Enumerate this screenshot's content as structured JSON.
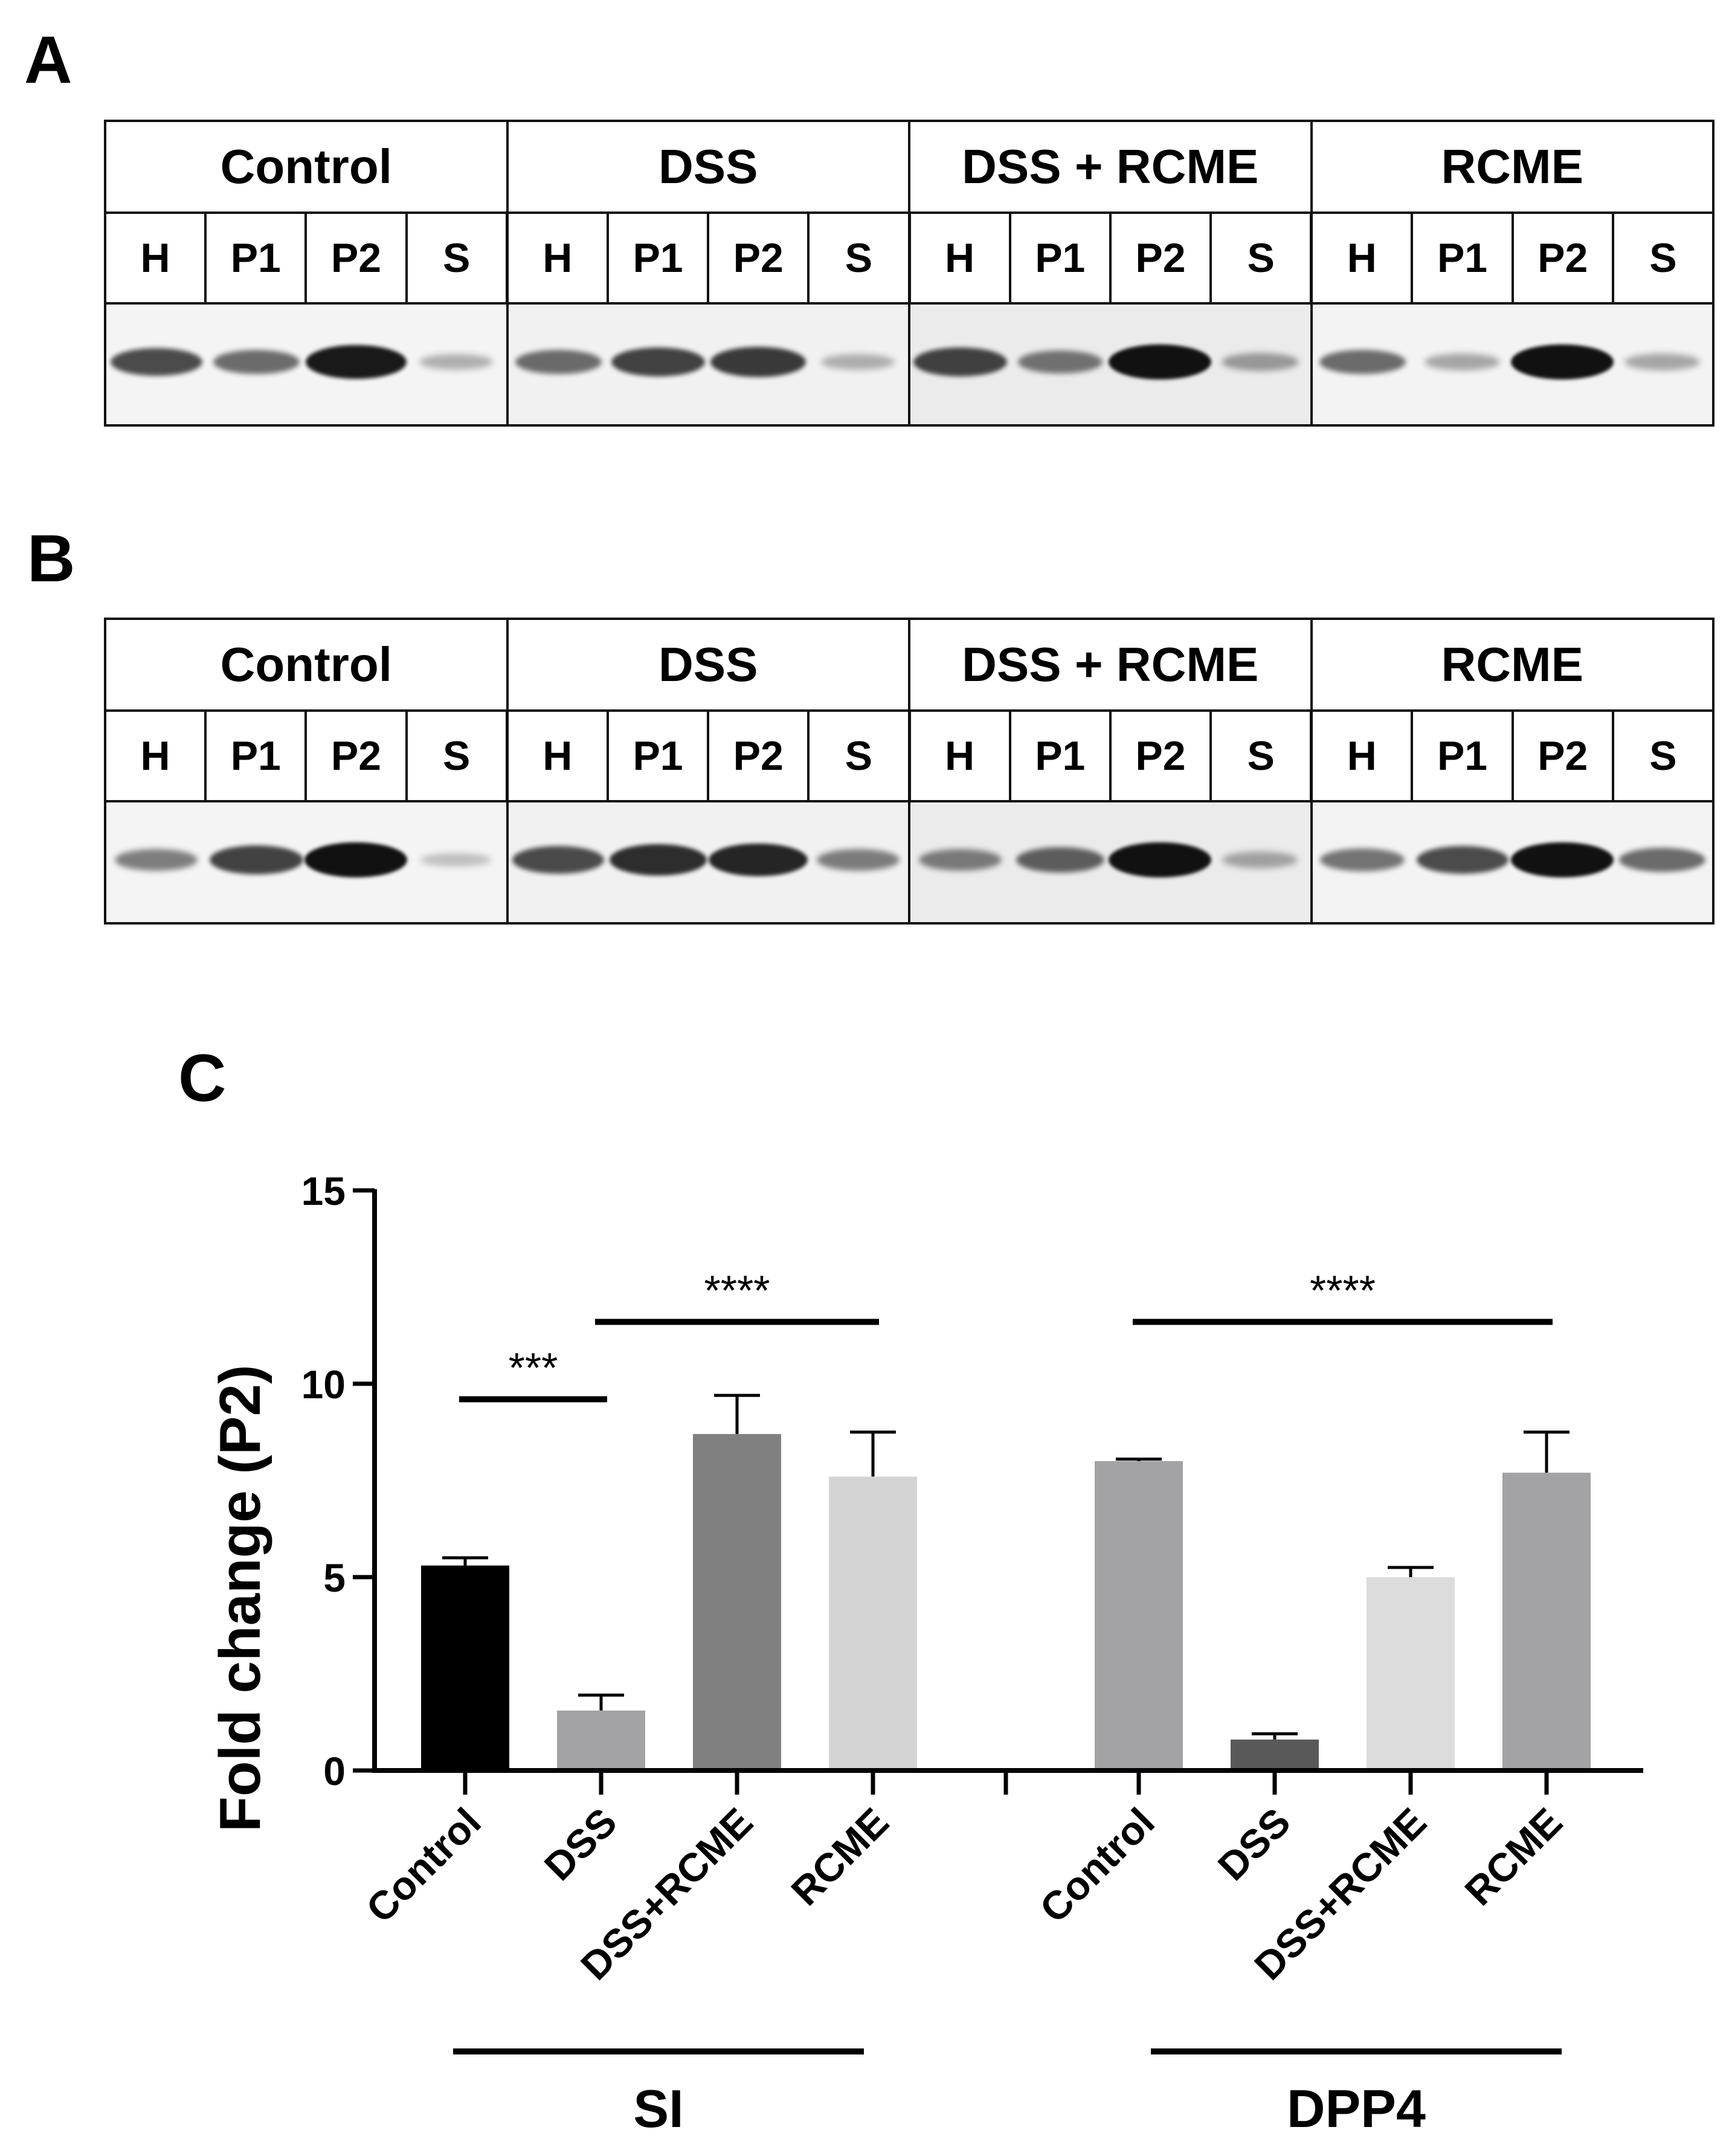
{
  "panels": {
    "a": "A",
    "b": "B",
    "c": "C"
  },
  "blot_a": {
    "groups": [
      "Control",
      "DSS",
      "DSS + RCME",
      "RCME"
    ],
    "lanes": [
      "H",
      "P1",
      "P2",
      "S"
    ],
    "band_intensity": [
      [
        0.7,
        0.55,
        0.95,
        0.2
      ],
      [
        0.55,
        0.75,
        0.8,
        0.2
      ],
      [
        0.75,
        0.5,
        1.0,
        0.3
      ],
      [
        0.55,
        0.25,
        1.0,
        0.25
      ]
    ]
  },
  "blot_b": {
    "groups": [
      "Control",
      "DSS",
      "DSS + RCME",
      "RCME"
    ],
    "lanes": [
      "H",
      "P1",
      "P2",
      "S"
    ],
    "band_intensity": [
      [
        0.45,
        0.75,
        1.0,
        0.12
      ],
      [
        0.7,
        0.85,
        0.9,
        0.45
      ],
      [
        0.45,
        0.6,
        1.0,
        0.25
      ],
      [
        0.5,
        0.7,
        1.0,
        0.55
      ]
    ]
  },
  "chart_data": {
    "type": "bar",
    "ylabel": "Fold change (P2)",
    "ylim": [
      0,
      15
    ],
    "yticks": [
      0,
      5,
      10,
      15
    ],
    "categories": [
      "Control",
      "DSS",
      "DSS+RCME",
      "RCME",
      "Control",
      "DSS",
      "DSS+RCME",
      "RCME"
    ],
    "groups": [
      {
        "name": "SI",
        "categories": [
          "Control",
          "DSS",
          "DSS+RCME",
          "RCME"
        ],
        "values": [
          5.3,
          1.55,
          8.7,
          7.6
        ],
        "errors": [
          0.2,
          0.4,
          1.0,
          1.15
        ],
        "colors": [
          "#000000",
          "#a3a3a6",
          "#808080",
          "#d4d4d4"
        ]
      },
      {
        "name": "DPP4",
        "categories": [
          "Control",
          "DSS",
          "DSS+RCME",
          "RCME"
        ],
        "values": [
          8.0,
          0.8,
          5.0,
          7.7
        ],
        "errors": [
          0.05,
          0.15,
          0.25,
          1.05
        ],
        "colors": [
          "#a3a3a6",
          "#595959",
          "#dcdcdc",
          "#a3a3a6"
        ]
      }
    ],
    "significance": [
      {
        "label": "***",
        "from": "SI:Control",
        "to": "SI:DSS",
        "y": 9.6
      },
      {
        "label": "****",
        "from": "SI:DSS",
        "to": "SI:RCME",
        "y": 11.6
      },
      {
        "label": "****",
        "from": "DPP4:Control",
        "to": "DPP4:RCME",
        "y": 11.6
      }
    ],
    "group_labels": [
      "SI",
      "DPP4"
    ]
  }
}
